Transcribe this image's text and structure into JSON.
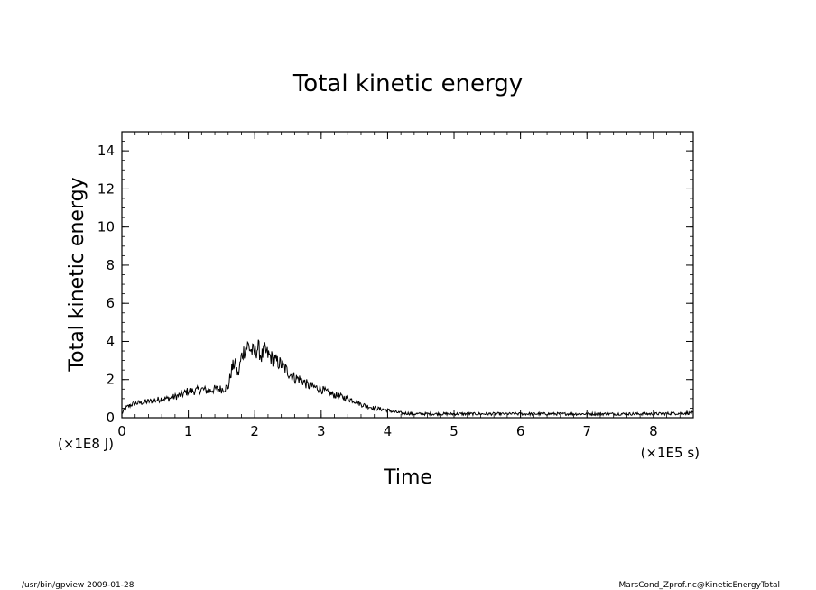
{
  "chart_data": {
    "type": "line",
    "title": "Total kinetic energy",
    "xlabel": "Time",
    "ylabel": "Total kinetic energy",
    "x_unit": "(×1E5 s)",
    "y_unit": "(×1E8 J)",
    "xlim": [
      0,
      8.6
    ],
    "ylim": [
      0,
      15
    ],
    "x_ticks": [
      0,
      1,
      2,
      3,
      4,
      5,
      6,
      7,
      8
    ],
    "x_tick_labels": [
      "0",
      "1",
      "2",
      "3",
      "4",
      "5",
      "6",
      "7",
      "8"
    ],
    "y_ticks": [
      0,
      2,
      4,
      6,
      8,
      10,
      12,
      14
    ],
    "y_tick_labels": [
      "0",
      "2",
      "4",
      "6",
      "8",
      "10",
      "12",
      "14"
    ],
    "grid": false,
    "line_color": "#000000",
    "series": [
      {
        "x": [
          0,
          0.05,
          0.1,
          0.15,
          0.2,
          0.3,
          0.4,
          0.5,
          0.6,
          0.7,
          0.8,
          0.9,
          1.0,
          1.1,
          1.2,
          1.3,
          1.4,
          1.5,
          1.6,
          1.65,
          1.7,
          1.75,
          1.8,
          1.85,
          1.9,
          1.95,
          2.0,
          2.05,
          2.1,
          2.15,
          2.2,
          2.3,
          2.4,
          2.5,
          2.6,
          2.7,
          2.8,
          2.9,
          3.0,
          3.1,
          3.2,
          3.3,
          3.4,
          3.5,
          3.6,
          3.7,
          3.8,
          3.9,
          4.0,
          4.1,
          4.2,
          4.4,
          4.6,
          5.0,
          5.5,
          6.0,
          6.5,
          7.0,
          7.5,
          8.0,
          8.6
        ],
        "y": [
          0.2,
          0.5,
          0.6,
          0.7,
          0.75,
          0.8,
          0.85,
          0.9,
          1.0,
          1.0,
          1.1,
          1.2,
          1.4,
          1.4,
          1.5,
          1.4,
          1.5,
          1.5,
          1.6,
          2.5,
          2.9,
          2.2,
          3.2,
          3.6,
          3.8,
          3.5,
          3.4,
          3.7,
          3.2,
          3.5,
          3.3,
          3.0,
          2.8,
          2.4,
          2.1,
          2.0,
          1.7,
          1.6,
          1.5,
          1.3,
          1.2,
          1.1,
          1.0,
          0.9,
          0.7,
          0.6,
          0.5,
          0.45,
          0.4,
          0.3,
          0.25,
          0.2,
          0.2,
          0.2,
          0.2,
          0.2,
          0.2,
          0.2,
          0.2,
          0.2,
          0.25
        ]
      }
    ]
  },
  "footer": {
    "left": "/usr/bin/gpview   2009-01-28",
    "right": "MarsCond_Zprof.nc@KineticEnergyTotal"
  }
}
